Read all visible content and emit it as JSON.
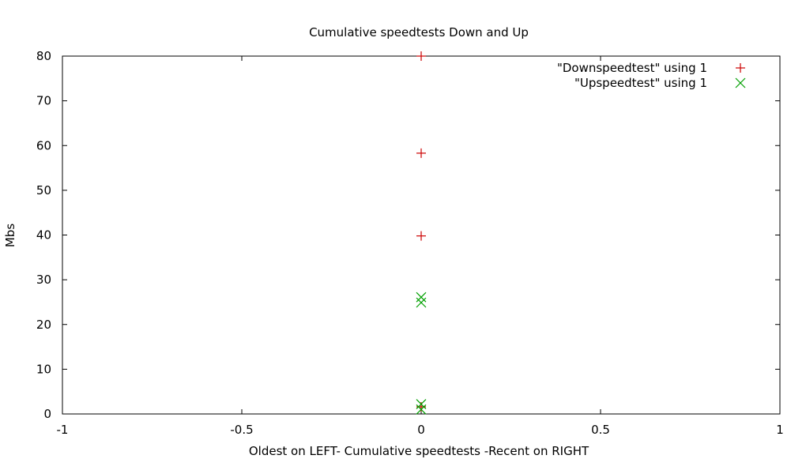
{
  "chart_data": {
    "type": "scatter",
    "title": "Cumulative speedtests Down and Up",
    "xlabel": "Oldest on LEFT- Cumulative speedtests -Recent on RIGHT",
    "ylabel": "Mbs",
    "xlim": [
      -1,
      1
    ],
    "ylim": [
      0,
      80
    ],
    "xticks": [
      -1,
      -0.5,
      0,
      0.5,
      1
    ],
    "xtick_labels": [
      "-1",
      "-0.5",
      "0",
      "0.5",
      "1"
    ],
    "yticks": [
      0,
      10,
      20,
      30,
      40,
      50,
      60,
      70,
      80
    ],
    "ytick_labels": [
      "0",
      "10",
      "20",
      "30",
      "40",
      "50",
      "60",
      "70",
      "80"
    ],
    "grid": false,
    "legend_position": "top-right",
    "series": [
      {
        "name": "\"Downspeedtest\" using 1",
        "marker": "plus",
        "color": "#cc0000",
        "points": [
          [
            0,
            80
          ],
          [
            0,
            58.3
          ],
          [
            0,
            39.8
          ],
          [
            0,
            1.6
          ]
        ]
      },
      {
        "name": "\"Upspeedtest\" using 1",
        "marker": "cross",
        "color": "#00a000",
        "points": [
          [
            0,
            26.1
          ],
          [
            0,
            24.9
          ],
          [
            0,
            2.2
          ],
          [
            0,
            1.0
          ]
        ]
      }
    ]
  }
}
